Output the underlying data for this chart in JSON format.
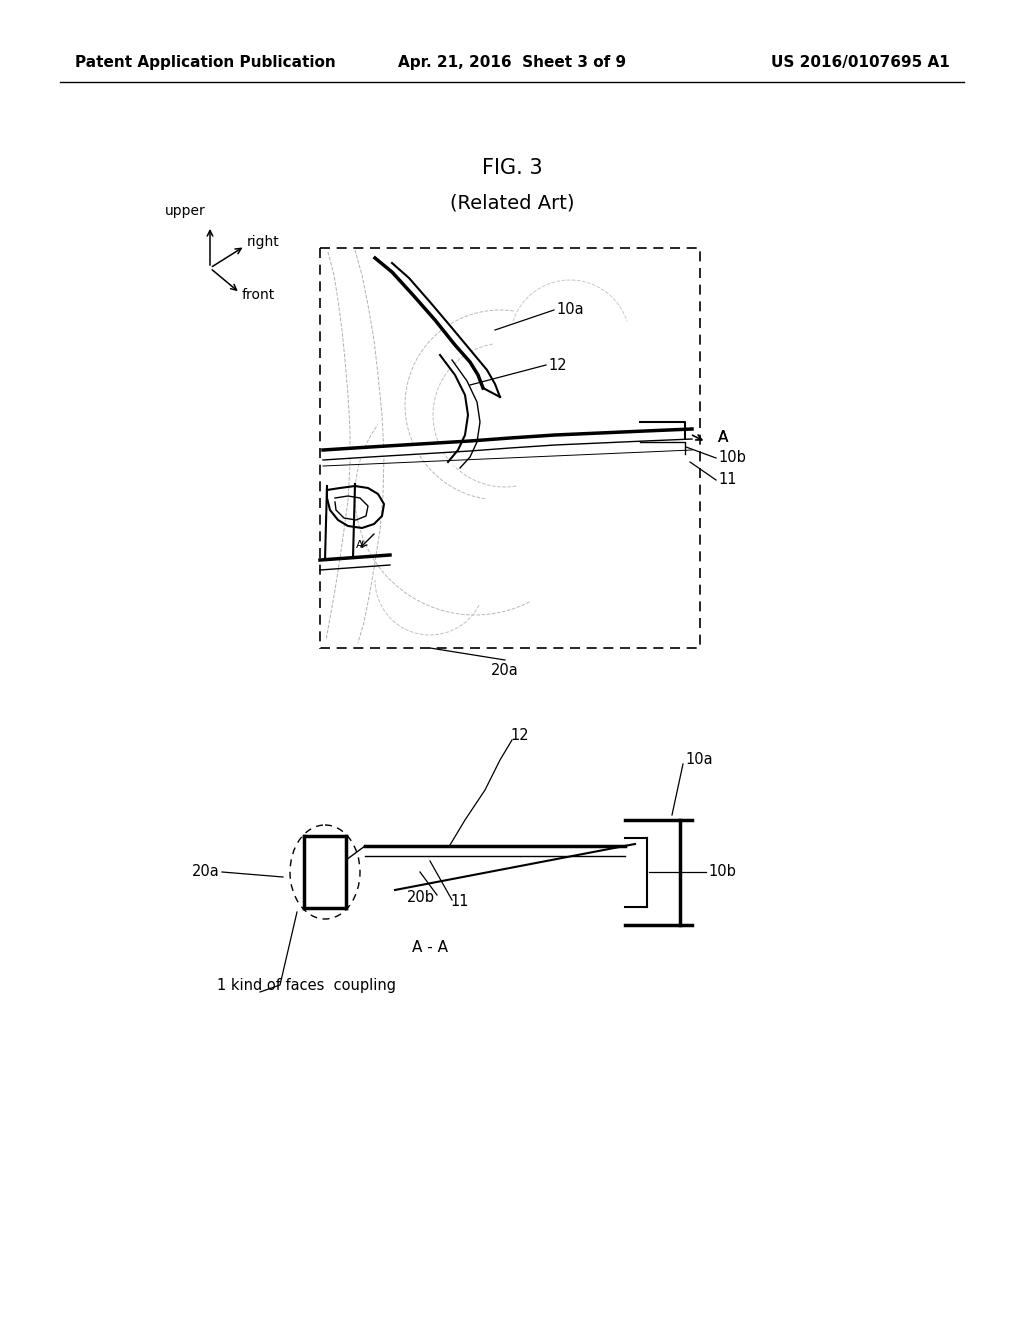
{
  "bg_color": "#ffffff",
  "header_left": "Patent Application Publication",
  "header_center": "Apr. 21, 2016  Sheet 3 of 9",
  "header_right": "US 2016/0107695 A1",
  "fig_title": "FIG. 3",
  "fig_subtitle": "(Related Art)"
}
